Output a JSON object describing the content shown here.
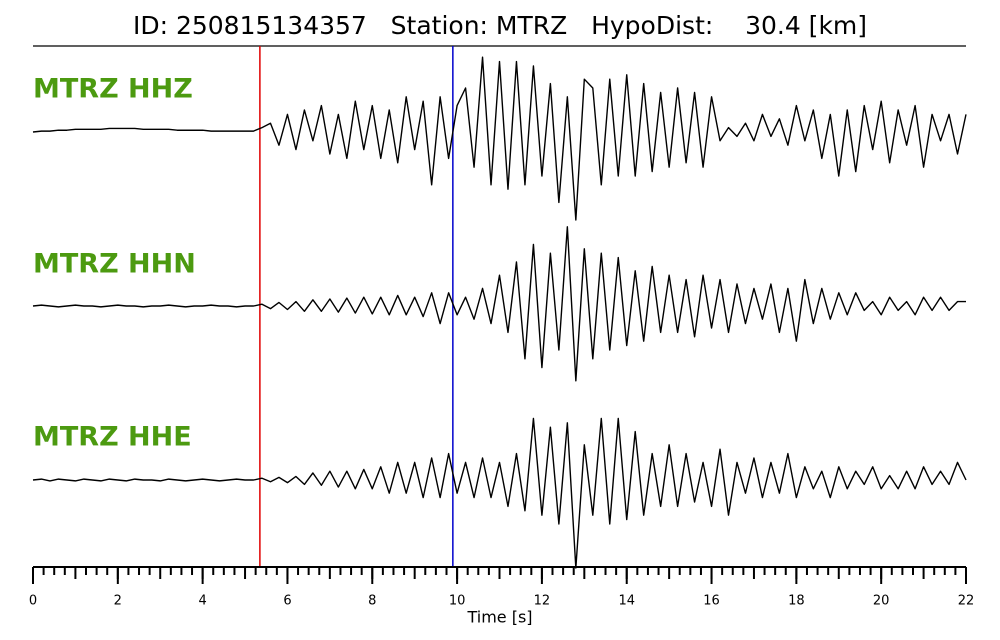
{
  "chart_data": {
    "type": "line",
    "title": "ID: 250815134357   Station: MTRZ   HypoDist:    30.4 [km]",
    "xlabel": "Time [s]",
    "xlim": [
      0,
      22
    ],
    "xticks": [
      0,
      2,
      4,
      6,
      8,
      10,
      12,
      14,
      16,
      18,
      20,
      22
    ],
    "xminor": 0.25,
    "ylim": [
      -1,
      1
    ],
    "picks": [
      {
        "x": 5.35,
        "color": "#e00000"
      },
      {
        "x": 9.9,
        "color": "#0000cc"
      }
    ],
    "label_color": "#4c9a10",
    "x": [
      0,
      0.2,
      0.4,
      0.6,
      0.8,
      1,
      1.2,
      1.4,
      1.6,
      1.8,
      2,
      2.2,
      2.4,
      2.6,
      2.8,
      3,
      3.2,
      3.4,
      3.6,
      3.8,
      4,
      4.2,
      4.4,
      4.6,
      4.8,
      5,
      5.2,
      5.4,
      5.6,
      5.8,
      6,
      6.2,
      6.4,
      6.6,
      6.8,
      7,
      7.2,
      7.4,
      7.6,
      7.8,
      8,
      8.2,
      8.4,
      8.6,
      8.8,
      9,
      9.2,
      9.4,
      9.6,
      9.8,
      10,
      10.2,
      10.4,
      10.6,
      10.8,
      11,
      11.2,
      11.4,
      11.6,
      11.8,
      12,
      12.2,
      12.4,
      12.6,
      12.8,
      13,
      13.2,
      13.4,
      13.6,
      13.8,
      14,
      14.2,
      14.4,
      14.6,
      14.8,
      15,
      15.2,
      15.4,
      15.6,
      15.8,
      16,
      16.2,
      16.4,
      16.6,
      16.8,
      17,
      17.2,
      17.4,
      17.6,
      17.8,
      18,
      18.2,
      18.4,
      18.6,
      18.8,
      19,
      19.2,
      19.4,
      19.6,
      19.8,
      20,
      20.2,
      20.4,
      20.6,
      20.8,
      21,
      21.2,
      21.4,
      21.6,
      21.8,
      22
    ],
    "series": [
      {
        "name": "MTRZ HHZ",
        "color": "#000000",
        "values": [
          0,
          0.01,
          0.01,
          0.02,
          0.02,
          0.03,
          0.03,
          0.03,
          0.03,
          0.04,
          0.04,
          0.04,
          0.04,
          0.03,
          0.03,
          0.03,
          0.03,
          0.02,
          0.02,
          0.02,
          0.02,
          0.01,
          0.01,
          0.01,
          0.01,
          0.01,
          0.01,
          0.05,
          0.1,
          -0.15,
          0.2,
          -0.2,
          0.25,
          -0.1,
          0.3,
          -0.25,
          0.2,
          -0.3,
          0.35,
          -0.2,
          0.3,
          -0.3,
          0.25,
          -0.35,
          0.4,
          -0.2,
          0.35,
          -0.6,
          0.4,
          -0.3,
          0.3,
          0.5,
          -0.4,
          0.85,
          -0.6,
          0.8,
          -0.65,
          0.8,
          -0.6,
          0.75,
          -0.5,
          0.55,
          -0.8,
          0.4,
          -1.0,
          0.6,
          0.5,
          -0.6,
          0.6,
          -0.5,
          0.65,
          -0.5,
          0.55,
          -0.45,
          0.45,
          -0.4,
          0.5,
          -0.35,
          0.45,
          -0.4,
          0.4,
          -0.1,
          0.05,
          -0.05,
          0.1,
          -0.1,
          0.2,
          -0.05,
          0.15,
          -0.15,
          0.3,
          -0.1,
          0.25,
          -0.3,
          0.2,
          -0.5,
          0.25,
          -0.45,
          0.3,
          -0.2,
          0.35,
          -0.35,
          0.25,
          -0.15,
          0.3,
          -0.4,
          0.2,
          -0.1,
          0.2,
          -0.25,
          0.2
        ]
      },
      {
        "name": "MTRZ HHN",
        "color": "#000000",
        "values": [
          0,
          0.01,
          0,
          -0.01,
          0,
          0.01,
          0,
          0,
          -0.01,
          0,
          0.01,
          0,
          0,
          -0.01,
          0,
          0,
          0.01,
          0,
          -0.01,
          0,
          0,
          0.01,
          0,
          0,
          -0.01,
          0,
          0,
          0.02,
          -0.03,
          0.04,
          -0.04,
          0.05,
          -0.06,
          0.07,
          -0.06,
          0.08,
          -0.07,
          0.09,
          -0.08,
          0.1,
          -0.09,
          0.1,
          -0.1,
          0.12,
          -0.1,
          0.1,
          -0.12,
          0.15,
          -0.2,
          0.15,
          -0.1,
          0.1,
          -0.15,
          0.2,
          -0.2,
          0.35,
          -0.3,
          0.5,
          -0.6,
          0.7,
          -0.7,
          0.6,
          -0.5,
          0.9,
          -0.85,
          0.65,
          -0.6,
          0.6,
          -0.5,
          0.55,
          -0.45,
          0.4,
          -0.4,
          0.45,
          -0.3,
          0.35,
          -0.3,
          0.3,
          -0.35,
          0.35,
          -0.25,
          0.3,
          -0.3,
          0.25,
          -0.2,
          0.2,
          -0.15,
          0.25,
          -0.3,
          0.2,
          -0.4,
          0.3,
          -0.2,
          0.2,
          -0.15,
          0.15,
          -0.1,
          0.15,
          -0.05,
          0.05,
          -0.1,
          0.1,
          -0.05,
          0.05,
          -0.1,
          0.1,
          -0.05,
          0.1,
          -0.05,
          0.05,
          0.05
        ]
      },
      {
        "name": "MTRZ HHE",
        "color": "#000000",
        "values": [
          0,
          0.01,
          -0.01,
          0.01,
          0,
          -0.01,
          0.01,
          0,
          -0.01,
          0.01,
          0,
          -0.01,
          0.01,
          0,
          0,
          -0.01,
          0.01,
          0,
          -0.01,
          0,
          0.01,
          0,
          -0.01,
          0,
          0.01,
          0,
          0,
          0.02,
          -0.02,
          0.03,
          -0.03,
          0.04,
          -0.05,
          0.08,
          -0.06,
          0.1,
          -0.08,
          0.1,
          -0.1,
          0.12,
          -0.1,
          0.15,
          -0.15,
          0.2,
          -0.15,
          0.2,
          -0.2,
          0.25,
          -0.2,
          0.3,
          -0.15,
          0.2,
          -0.2,
          0.25,
          -0.2,
          0.2,
          -0.3,
          0.3,
          -0.35,
          0.7,
          -0.4,
          0.6,
          -0.5,
          0.65,
          -1.0,
          0.4,
          -0.4,
          0.7,
          -0.5,
          0.7,
          -0.45,
          0.55,
          -0.4,
          0.3,
          -0.3,
          0.4,
          -0.3,
          0.3,
          -0.25,
          0.2,
          -0.3,
          0.35,
          -0.4,
          0.2,
          -0.15,
          0.25,
          -0.2,
          0.2,
          -0.15,
          0.3,
          -0.2,
          0.15,
          -0.1,
          0.1,
          -0.2,
          0.15,
          -0.1,
          0.1,
          -0.05,
          0.15,
          -0.1,
          0.05,
          -0.1,
          0.1,
          -0.1,
          0.15,
          -0.05,
          0.1,
          -0.05,
          0.2,
          0
        ]
      }
    ]
  }
}
